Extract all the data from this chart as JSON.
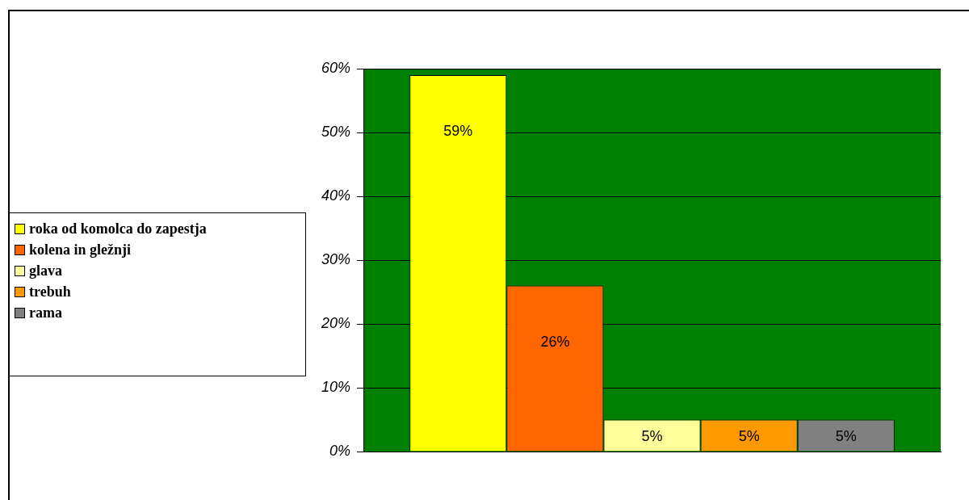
{
  "chart_data": {
    "type": "bar",
    "categories": [
      null
    ],
    "series": [
      {
        "name": "roka od komolca do zapestja",
        "color": "#ffff00",
        "values": [
          59
        ],
        "value_labels": [
          "59%"
        ]
      },
      {
        "name": "kolena in gležnji",
        "color": "#ff6600",
        "values": [
          26
        ],
        "value_labels": [
          "26%"
        ]
      },
      {
        "name": "glava",
        "color": "#ffff99",
        "values": [
          5
        ],
        "value_labels": [
          "5%"
        ]
      },
      {
        "name": "trebuh",
        "color": "#ff9900",
        "values": [
          5
        ],
        "value_labels": [
          "5%"
        ]
      },
      {
        "name": "rama",
        "color": "#808080",
        "values": [
          5
        ],
        "value_labels": [
          "5%"
        ]
      }
    ],
    "ylim": [
      0,
      60
    ],
    "yticks": [
      {
        "value": 0,
        "label": "0%"
      },
      {
        "value": 10,
        "label": "10%"
      },
      {
        "value": 20,
        "label": "20%"
      },
      {
        "value": 30,
        "label": "30%"
      },
      {
        "value": 40,
        "label": "40%"
      },
      {
        "value": 50,
        "label": "50%"
      },
      {
        "value": 60,
        "label": "60%"
      }
    ],
    "grid": "y",
    "legend": "left"
  }
}
